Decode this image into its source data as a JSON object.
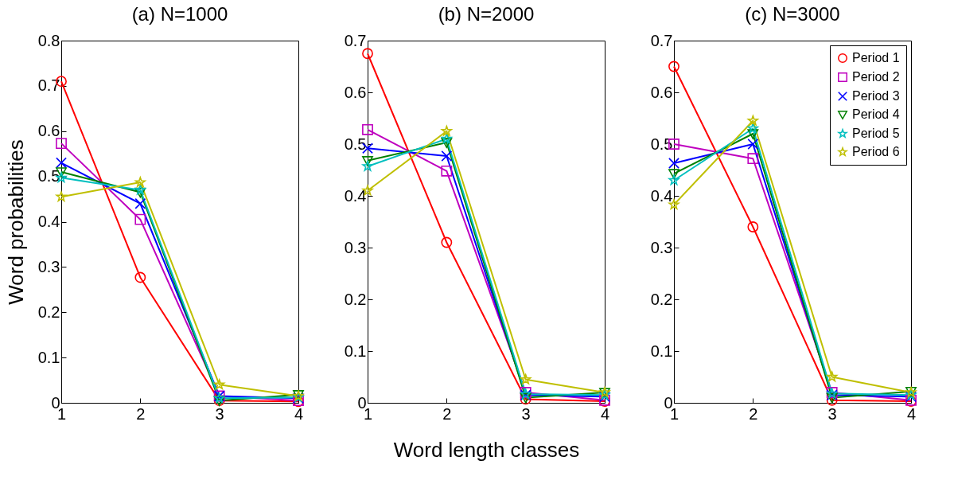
{
  "chart_data": [
    {
      "type": "line",
      "title": "(a) N=1000",
      "ylabel": "Word probabilities",
      "x": [
        1,
        2,
        3,
        4
      ],
      "xlim": [
        1,
        4
      ],
      "xticks": [
        1,
        2,
        3,
        4
      ],
      "ylim": [
        0,
        0.8
      ],
      "yticks": [
        0,
        0.1,
        0.2,
        0.3,
        0.4,
        0.5,
        0.6,
        0.7,
        0.8
      ],
      "grid": false,
      "legend": false,
      "series": [
        {
          "color": "#ff0000",
          "marker": "circle",
          "values": [
            0.71,
            0.277,
            0.005,
            0.003
          ]
        },
        {
          "color": "#bf00bf",
          "marker": "square",
          "values": [
            0.573,
            0.405,
            0.015,
            0.005
          ]
        },
        {
          "color": "#0000ff",
          "marker": "cross",
          "values": [
            0.53,
            0.44,
            0.015,
            0.01
          ]
        },
        {
          "color": "#008000",
          "marker": "triangle",
          "values": [
            0.51,
            0.465,
            0.005,
            0.018
          ]
        },
        {
          "color": "#00bfbf",
          "marker": "star",
          "values": [
            0.497,
            0.47,
            0.01,
            0.012
          ]
        },
        {
          "color": "#bfbf00",
          "marker": "star",
          "values": [
            0.455,
            0.487,
            0.04,
            0.015
          ]
        }
      ]
    },
    {
      "type": "line",
      "title": "(b) N=2000",
      "xlabel": "Word length classes",
      "x": [
        1,
        2,
        3,
        4
      ],
      "xlim": [
        1,
        4
      ],
      "xticks": [
        1,
        2,
        3,
        4
      ],
      "ylim": [
        0,
        0.7
      ],
      "yticks": [
        0,
        0.1,
        0.2,
        0.3,
        0.4,
        0.5,
        0.6,
        0.7
      ],
      "grid": false,
      "legend": false,
      "series": [
        {
          "color": "#ff0000",
          "marker": "circle",
          "values": [
            0.675,
            0.31,
            0.007,
            0.003
          ]
        },
        {
          "color": "#bf00bf",
          "marker": "square",
          "values": [
            0.528,
            0.448,
            0.02,
            0.005
          ]
        },
        {
          "color": "#0000ff",
          "marker": "cross",
          "values": [
            0.492,
            0.477,
            0.015,
            0.012
          ]
        },
        {
          "color": "#008000",
          "marker": "triangle",
          "values": [
            0.468,
            0.503,
            0.01,
            0.02
          ]
        },
        {
          "color": "#00bfbf",
          "marker": "star",
          "values": [
            0.457,
            0.51,
            0.017,
            0.015
          ]
        },
        {
          "color": "#bfbf00",
          "marker": "star",
          "values": [
            0.41,
            0.525,
            0.045,
            0.02
          ]
        }
      ]
    },
    {
      "type": "line",
      "title": "(c) N=3000",
      "x": [
        1,
        2,
        3,
        4
      ],
      "xlim": [
        1,
        4
      ],
      "xticks": [
        1,
        2,
        3,
        4
      ],
      "ylim": [
        0,
        0.7
      ],
      "yticks": [
        0,
        0.1,
        0.2,
        0.3,
        0.4,
        0.5,
        0.6,
        0.7
      ],
      "grid": false,
      "legend": "top right",
      "series": [
        {
          "name": "Period 1",
          "color": "#ff0000",
          "marker": "circle",
          "values": [
            0.65,
            0.34,
            0.005,
            0.003
          ]
        },
        {
          "name": "Period 2",
          "color": "#bf00bf",
          "marker": "square",
          "values": [
            0.5,
            0.472,
            0.02,
            0.005
          ]
        },
        {
          "name": "Period 3",
          "color": "#0000ff",
          "marker": "cross",
          "values": [
            0.463,
            0.5,
            0.015,
            0.012
          ]
        },
        {
          "name": "Period 4",
          "color": "#008000",
          "marker": "triangle",
          "values": [
            0.443,
            0.52,
            0.01,
            0.022
          ]
        },
        {
          "name": "Period 5",
          "color": "#00bfbf",
          "marker": "star",
          "values": [
            0.43,
            0.53,
            0.018,
            0.015
          ]
        },
        {
          "name": "Period 6",
          "color": "#bfbf00",
          "marker": "star",
          "values": [
            0.383,
            0.545,
            0.05,
            0.02
          ]
        }
      ]
    }
  ]
}
